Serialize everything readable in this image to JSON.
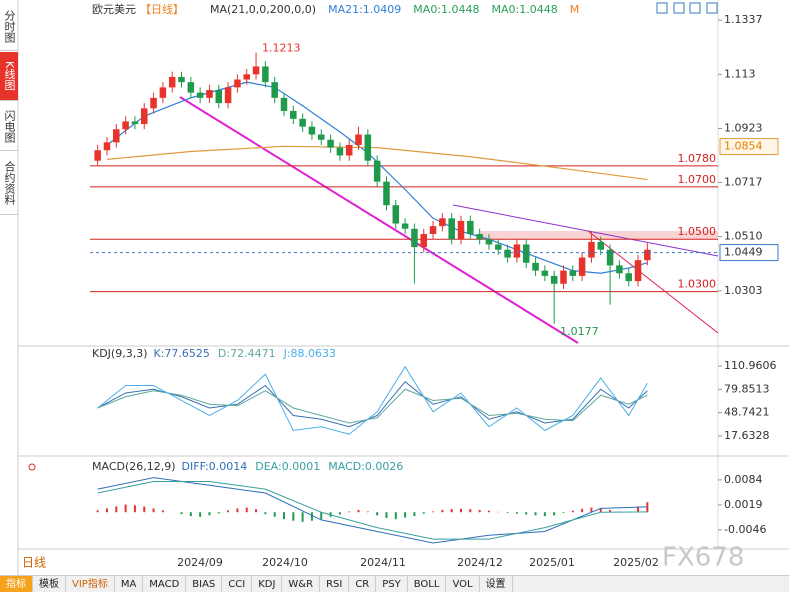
{
  "sidebar": [
    "分时图",
    "K线图",
    "闪电图",
    "合约资料"
  ],
  "period_tab": "日线",
  "watermark": "FX678",
  "toolbar": [
    "指标",
    "模板",
    "VIP指标",
    "MA",
    "MACD",
    "BIAS",
    "CCI",
    "KDJ",
    "W&R",
    "RSI",
    "CR",
    "PSY",
    "BOLL",
    "VOL",
    "设置"
  ],
  "chart_data": {
    "type": "candlestick",
    "title": "欧元美元",
    "period": "【日线】",
    "header_items": [
      {
        "text": "MA(21,0,0,200,0,0)",
        "color": "#333333"
      },
      {
        "text": "MA21:1.0409",
        "color": "#2f7fd6"
      },
      {
        "text": "MA0:1.0448",
        "color": "#2aa05a"
      },
      {
        "text": "MA0:1.0448",
        "color": "#2aa05a"
      },
      {
        "text": "M",
        "color": "#f08020"
      }
    ],
    "up_color": "#e8332c",
    "down_color": "#1f9a4c",
    "ylim": [
      1.0096,
      1.1368
    ],
    "yticks": [
      1.1337,
      1.113,
      1.0923,
      1.0717,
      {
        "value": 1.051,
        "label": "1.0510"
      },
      1.0303
    ],
    "xaxis_labels": [
      "2024/09",
      "2024/10",
      "2024/11",
      "2024/12",
      "2025/01",
      "2025/02"
    ],
    "open": [
      1.08,
      1.084,
      1.087,
      1.092,
      1.095,
      1.094,
      1.1,
      1.104,
      1.108,
      1.112,
      1.11,
      1.106,
      1.104,
      1.107,
      1.102,
      1.108,
      1.111,
      1.113,
      1.116,
      1.11,
      1.104,
      1.099,
      1.096,
      1.093,
      1.09,
      1.088,
      1.085,
      1.082,
      1.086,
      1.09,
      1.08,
      1.072,
      1.063,
      1.056,
      1.054,
      1.047,
      1.052,
      1.055,
      1.058,
      1.05,
      1.057,
      1.052,
      1.05,
      1.048,
      1.046,
      1.043,
      1.048,
      1.041,
      1.038,
      1.036,
      1.033,
      1.038,
      1.036,
      1.043,
      1.049,
      1.046,
      1.04,
      1.037,
      1.034,
      1.042
    ],
    "high": [
      1.086,
      1.089,
      1.094,
      1.097,
      1.097,
      1.102,
      1.106,
      1.11,
      1.114,
      1.114,
      1.112,
      1.108,
      1.109,
      1.109,
      1.11,
      1.113,
      1.115,
      1.1213,
      1.118,
      1.112,
      1.106,
      1.101,
      1.098,
      1.095,
      1.092,
      1.09,
      1.087,
      1.088,
      1.093,
      1.092,
      1.082,
      1.074,
      1.065,
      1.058,
      1.056,
      1.054,
      1.057,
      1.06,
      1.06,
      1.059,
      1.059,
      1.054,
      1.052,
      1.05,
      1.048,
      1.05,
      1.05,
      1.043,
      1.04,
      1.038,
      1.04,
      1.04,
      1.045,
      1.053,
      1.051,
      1.048,
      1.042,
      1.039,
      1.044,
      1.049
    ],
    "low": [
      1.078,
      1.082,
      1.085,
      1.09,
      1.092,
      1.092,
      1.098,
      1.102,
      1.106,
      1.108,
      1.104,
      1.102,
      1.102,
      1.1,
      1.1,
      1.106,
      1.109,
      1.111,
      1.108,
      1.102,
      1.097,
      1.094,
      1.091,
      1.088,
      1.086,
      1.083,
      1.08,
      1.08,
      1.084,
      1.078,
      1.07,
      1.061,
      1.054,
      1.052,
      1.033,
      1.045,
      1.05,
      1.053,
      1.048,
      1.048,
      1.05,
      1.048,
      1.046,
      1.044,
      1.041,
      1.041,
      1.039,
      1.036,
      1.034,
      1.0177,
      1.031,
      1.034,
      1.034,
      1.041,
      1.044,
      1.025,
      1.035,
      1.032,
      1.032,
      1.04
    ],
    "close": [
      1.084,
      1.087,
      1.092,
      1.095,
      1.094,
      1.1,
      1.104,
      1.108,
      1.112,
      1.11,
      1.106,
      1.104,
      1.107,
      1.102,
      1.108,
      1.111,
      1.113,
      1.116,
      1.11,
      1.104,
      1.099,
      1.096,
      1.093,
      1.09,
      1.088,
      1.085,
      1.082,
      1.086,
      1.09,
      1.08,
      1.072,
      1.063,
      1.056,
      1.054,
      1.047,
      1.052,
      1.055,
      1.058,
      1.05,
      1.057,
      1.052,
      1.05,
      1.048,
      1.046,
      1.043,
      1.048,
      1.041,
      1.038,
      1.036,
      1.033,
      1.038,
      1.036,
      1.043,
      1.049,
      1.046,
      1.04,
      1.037,
      1.034,
      1.042,
      1.046
    ],
    "series": [
      {
        "color": "#2f7fd6",
        "x": [
          1,
          5,
          10,
          16,
          19,
          22,
          26,
          29,
          33,
          36,
          39,
          42,
          45,
          48,
          51,
          54,
          57,
          59
        ],
        "values": [
          1.086,
          1.097,
          1.104,
          1.11,
          1.108,
          1.101,
          1.091,
          1.083,
          1.069,
          1.058,
          1.053,
          1.05,
          1.046,
          1.042,
          1.038,
          1.037,
          1.039,
          1.041
        ]
      },
      {
        "color": "#e09a3c",
        "x": [
          1,
          10,
          20,
          30,
          40,
          50,
          59
        ],
        "values": [
          1.0805,
          1.0835,
          1.0855,
          1.085,
          1.0815,
          1.077,
          1.0728
        ]
      }
    ],
    "levels": [
      {
        "value": 1.078,
        "label": "1.0780"
      },
      {
        "value": 1.07,
        "label": "1.0700"
      },
      {
        "value": 1.05,
        "label": "1.0500"
      },
      {
        "value": 1.03,
        "label": "1.0300"
      }
    ],
    "level_color": "#d42020",
    "ma_price": 1.0854,
    "last_price": 1.0449,
    "high_mark": 17,
    "low_mark": 49,
    "kdj": {
      "title": "KDJ(9,3,3)",
      "legend": [
        "K:77.6525",
        "D:72.4471",
        "J:88.0633"
      ],
      "ylim": [
        -7.7,
        135
      ],
      "yticks": [
        110.9606,
        79.8513,
        48.7421,
        17.6328
      ],
      "x": [
        0,
        3,
        6,
        9,
        12,
        15,
        18,
        21,
        24,
        27,
        30,
        33,
        36,
        39,
        42,
        45,
        48,
        51,
        54,
        57,
        59
      ],
      "series": [
        {
          "color": "#3a6fb0",
          "values": [
            55,
            75,
            80,
            70,
            55,
            60,
            85,
            45,
            40,
            30,
            45,
            90,
            60,
            70,
            40,
            50,
            35,
            40,
            80,
            55,
            78
          ]
        },
        {
          "color": "#5fa8a0",
          "values": [
            55,
            70,
            78,
            72,
            60,
            58,
            78,
            55,
            45,
            35,
            42,
            80,
            65,
            68,
            45,
            48,
            40,
            38,
            72,
            60,
            72
          ]
        },
        {
          "color": "#4ab0e8",
          "values": [
            55,
            85,
            85,
            65,
            45,
            65,
            100,
            25,
            30,
            20,
            50,
            110,
            50,
            75,
            30,
            55,
            25,
            45,
            95,
            45,
            88
          ]
        }
      ]
    },
    "macd": {
      "title": "MACD(26,12,9)",
      "legend": [
        "DIFF:0.0014",
        "DEA:0.0001",
        "MACD:0.0026"
      ],
      "ylim": [
        -0.0093,
        0.0141
      ],
      "yticks": [
        0.0084,
        0.0019,
        -0.0046
      ],
      "hist": [
        0.0005,
        0.001,
        0.0015,
        0.002,
        0.0018,
        0.0015,
        0.001,
        0.0005,
        0,
        -0.0005,
        -0.001,
        -0.0012,
        -0.0008,
        -0.0003,
        0.0005,
        0.001,
        0.0012,
        0.0008,
        -0.0005,
        -0.0012,
        -0.0018,
        -0.0022,
        -0.0025,
        -0.0022,
        -0.0018,
        -0.0012,
        -0.0006,
        0.0002,
        0.0006,
        0.0002,
        -0.0008,
        -0.0015,
        -0.0018,
        -0.0014,
        -0.001,
        -0.0004,
        0.0002,
        0.0006,
        0.0008,
        0.0009,
        0.0008,
        0.0006,
        0.0004,
        0.0001,
        -0.0002,
        -0.0004,
        -0.0006,
        -0.0008,
        -0.001,
        -0.0008,
        -0.0002,
        0.0004,
        0.0009,
        0.0012,
        0.001,
        0.0006,
        0.0002,
        0.0001,
        0.0015,
        0.0026
      ],
      "x": [
        0,
        6,
        12,
        18,
        24,
        30,
        36,
        42,
        48,
        54,
        59
      ],
      "series": [
        {
          "color": "#2f6fb8",
          "values": [
            0.006,
            0.009,
            0.007,
            0.005,
            -0.002,
            -0.005,
            -0.008,
            -0.006,
            -0.005,
            0.001,
            0.0014
          ]
        },
        {
          "color": "#38a0a0",
          "values": [
            0.005,
            0.008,
            0.008,
            0.006,
            0.0,
            -0.004,
            -0.007,
            -0.007,
            -0.004,
            0.0,
            0.0001
          ]
        }
      ]
    }
  }
}
